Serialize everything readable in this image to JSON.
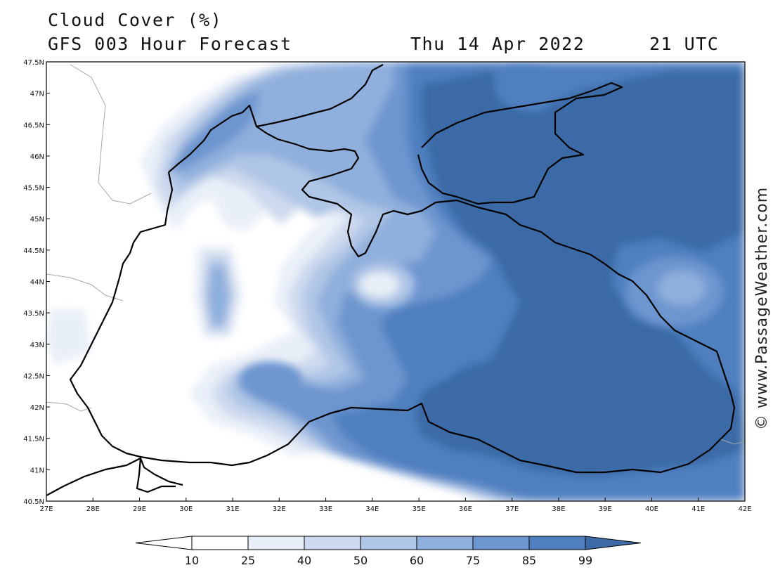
{
  "title": "Cloud Cover (%)",
  "subtitle": "GFS 003 Hour Forecast",
  "valid_date": "Thu 14 Apr 2022",
  "valid_time": "21 UTC",
  "copyright": "© www.PassageWeather.com",
  "map": {
    "lon_range": [
      27,
      42
    ],
    "lat_range": [
      40.5,
      47.5
    ],
    "lon_ticks": [
      "27E",
      "28E",
      "29E",
      "30E",
      "31E",
      "32E",
      "33E",
      "34E",
      "35E",
      "36E",
      "37E",
      "38E",
      "39E",
      "40E",
      "41E",
      "42E"
    ],
    "lat_ticks": [
      "47.5N",
      "47N",
      "46.5N",
      "46N",
      "45.5N",
      "45N",
      "44.5N",
      "44N",
      "43.5N",
      "43N",
      "42.5N",
      "42N",
      "41.5N",
      "41N",
      "40.5N"
    ],
    "colors": {
      "c10": "#ffffff",
      "c25": "#e9eff8",
      "c40": "#cdd9ee",
      "c50": "#b0c6e6",
      "c60": "#8fafdc",
      "c75": "#6d95cf",
      "c85": "#4f7fbf",
      "c99": "#3b6aa6"
    }
  },
  "legend": {
    "levels": [
      "10",
      "25",
      "40",
      "50",
      "60",
      "75",
      "85",
      "99"
    ],
    "colors": [
      "#ffffff",
      "#e9eff8",
      "#cdd9ee",
      "#b0c6e6",
      "#8fafdc",
      "#6d95cf",
      "#4f7fbf",
      "#3b6aa6"
    ]
  }
}
